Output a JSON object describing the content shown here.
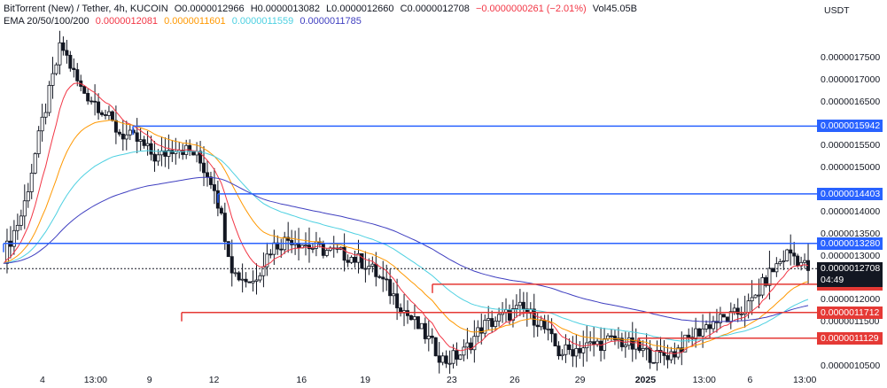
{
  "legend": {
    "pair": "BitTorrent (New) / Tether, 4h, KUCOIN",
    "open": "O0.0000012966",
    "high": "H0.0000013082",
    "low": "L0.0000012660",
    "close": "C0.0000012708",
    "change": "−0.0000000261 (−2.01%)",
    "volume": "Vol45.05B",
    "ema_label": "EMA 20/50/100/200",
    "ema_values": [
      "0.0000012081",
      "0.0000011601",
      "0.0000011559",
      "0.0000011785"
    ]
  },
  "currency": "USDT",
  "colors": {
    "ema20": "#f23645",
    "ema50": "#ff9800",
    "ema100": "#4dd0e1",
    "ema200": "#3f3fc0",
    "resistance": "#2962ff",
    "support": "#e53935",
    "candle": "#131722",
    "current": "#131722"
  },
  "current_price": {
    "value": "0.0000012708",
    "countdown": "04:49"
  },
  "price_ticks": [
    "0.0000017500",
    "0.0000017000",
    "0.0000016500",
    "0.0000015500",
    "0.0000015000",
    "0.0000014000",
    "0.0000013500",
    "0.0000013000",
    "0.0000012000",
    "0.0000011500",
    "0.0000010500"
  ],
  "time_ticks": [
    "4",
    "13:00",
    "9",
    "12",
    "16",
    "19",
    "23",
    "26",
    "29",
    "2025",
    "13:00",
    "6",
    "13:00"
  ],
  "levels": {
    "resistance": [
      "0.0000015942",
      "0.0000014403",
      "0.0000013280"
    ],
    "support": [
      "0.0000012353",
      "0.0000011712",
      "0.0000011129"
    ]
  },
  "chart_data": {
    "type": "candlestick",
    "symbol": "BitTorrent (New) / Tether",
    "timeframe": "4h",
    "exchange": "KUCOIN",
    "ylim": [
      1.04e-06,
      1.82e-06
    ],
    "x": [
      "4",
      "13:00",
      "9",
      "12",
      "16",
      "19",
      "23",
      "26",
      "29",
      "2025",
      "13:00",
      "6",
      "13:00"
    ],
    "close_path": [
      1.3e-06,
      1.4e-06,
      1.6e-06,
      1.78e-06,
      1.68e-06,
      1.64e-06,
      1.58e-06,
      1.56e-06,
      1.52e-06,
      1.55e-06,
      1.53e-06,
      1.46e-06,
      1.26e-06,
      1.24e-06,
      1.32e-06,
      1.34e-06,
      1.32e-06,
      1.31e-06,
      1.3e-06,
      1.28e-06,
      1.23e-06,
      1.17e-06,
      1.12e-06,
      1.06e-06,
      1.08e-06,
      1.14e-06,
      1.16e-06,
      1.18e-06,
      1.15e-06,
      1.08e-06,
      1.09e-06,
      1.1e-06,
      1.11e-06,
      1.09e-06,
      1.07e-06,
      1.08e-06,
      1.12e-06,
      1.15e-06,
      1.16e-06,
      1.19e-06,
      1.26e-06,
      1.31e-06,
      1.27e-06
    ],
    "ema": [
      {
        "name": "EMA 20",
        "value": 1.2081e-06
      },
      {
        "name": "EMA 50",
        "value": 1.1601e-06
      },
      {
        "name": "EMA 100",
        "value": 1.1559e-06
      },
      {
        "name": "EMA 200",
        "value": 1.1785e-06
      }
    ],
    "horizontal_levels": [
      1.5942e-06,
      1.4403e-06,
      1.328e-06,
      1.2353e-06,
      1.1712e-06,
      1.1129e-06
    ],
    "last_price": 1.2708e-06
  }
}
